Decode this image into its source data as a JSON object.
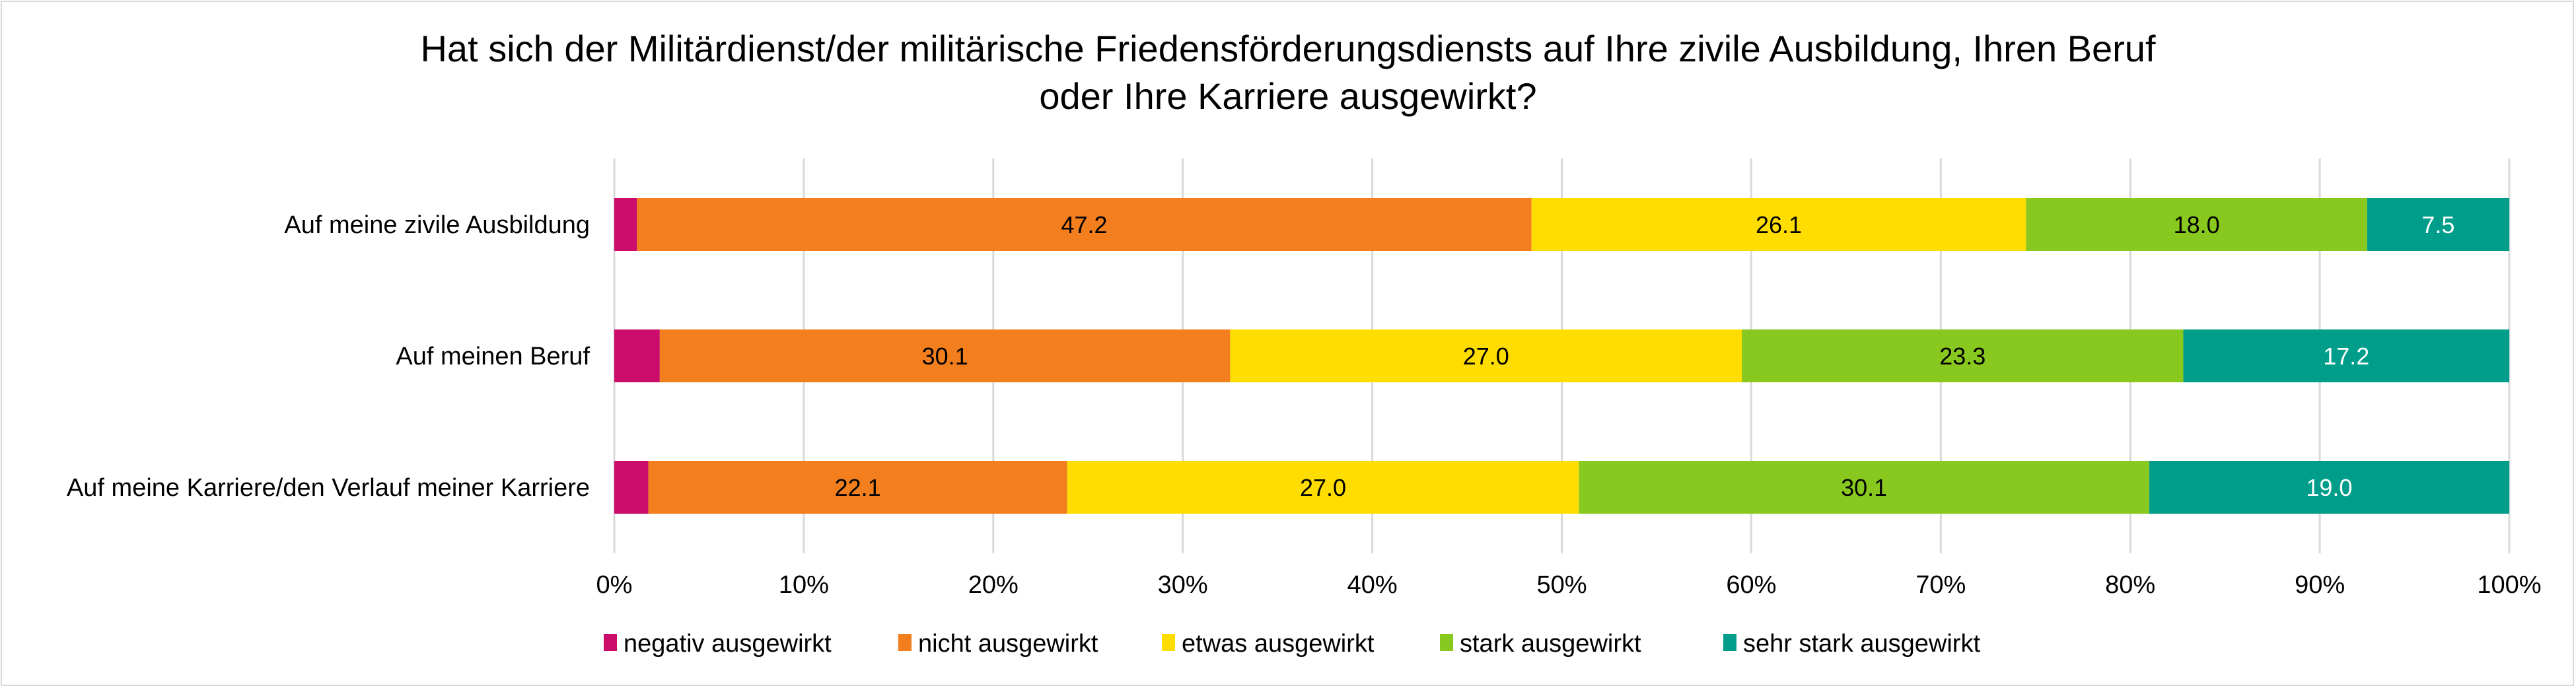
{
  "chart_data": {
    "type": "bar",
    "orientation": "horizontal",
    "stacked": "percent",
    "title": "Hat sich der Militärdienst/der militärische Friedensförderungsdiensts auf Ihre zivile Ausbildung, Ihren Beruf\noder Ihre Karriere ausgewirkt?",
    "xlabel": "",
    "ylabel": "",
    "xlim": [
      0,
      100
    ],
    "x_ticks": [
      "0%",
      "10%",
      "20%",
      "30%",
      "40%",
      "50%",
      "60%",
      "70%",
      "80%",
      "90%",
      "100%"
    ],
    "grid": true,
    "legend_position": "bottom",
    "categories": [
      "Auf meine zivile Ausbildung",
      "Auf meinen Beruf",
      "Auf meine Karriere/den Verlauf meiner Karriere"
    ],
    "series": [
      {
        "name": "negativ ausgewirkt",
        "color": "#CC0C6B",
        "label_color": "#000000",
        "values": [
          1.2,
          2.4,
          1.8
        ],
        "labels": [
          "",
          "",
          ""
        ]
      },
      {
        "name": "nicht ausgewirkt",
        "color": "#F27E1E",
        "label_color": "#000000",
        "values": [
          47.2,
          30.1,
          22.1
        ],
        "labels": [
          "47.2",
          "30.1",
          "22.1"
        ]
      },
      {
        "name": "etwas ausgewirkt",
        "color": "#FFDD00",
        "label_color": "#000000",
        "values": [
          26.1,
          27.0,
          27.0
        ],
        "labels": [
          "26.1",
          "27.0",
          "27.0"
        ]
      },
      {
        "name": "stark ausgewirkt",
        "color": "#89C81E",
        "label_color": "#000000",
        "values": [
          18.0,
          23.3,
          30.1
        ],
        "labels": [
          "18.0",
          "23.3",
          "30.1"
        ]
      },
      {
        "name": "sehr stark ausgewirkt",
        "color": "#009D8A",
        "label_color": "#FFFFFF",
        "values": [
          7.5,
          17.2,
          19.0
        ],
        "labels": [
          "7.5",
          "17.2",
          "19.0"
        ]
      }
    ],
    "gridline_color": "#D9D9D9"
  }
}
